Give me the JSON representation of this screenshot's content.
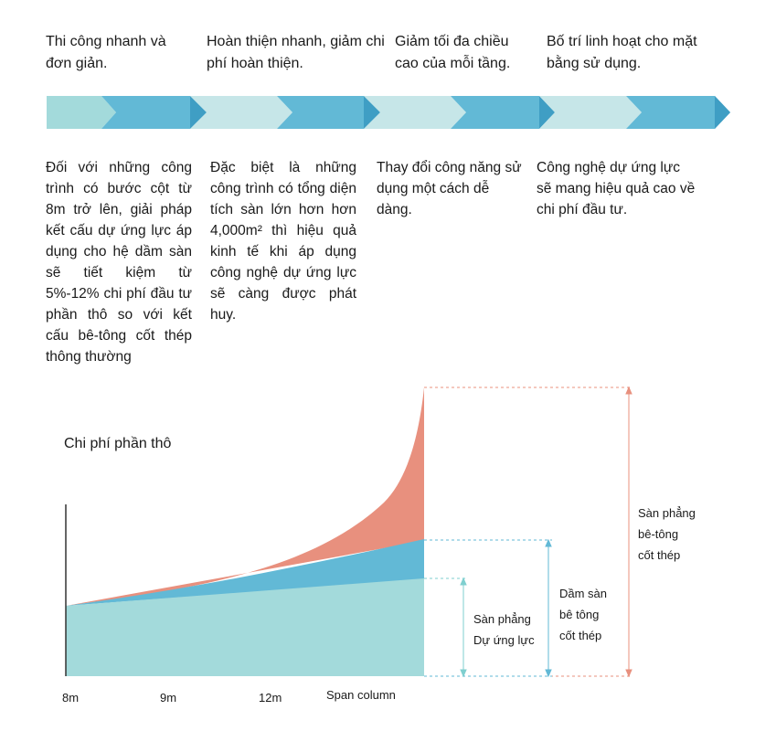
{
  "benefits": [
    "Thi công nhanh và đơn giản.",
    "Hoàn thiện nhanh, giảm chi phí hoàn thiện.",
    "Giảm tối đa chiều cao của mỗi tầng.",
    "Bố trí linh hoạt cho mặt bằng sử dụng."
  ],
  "descriptions": [
    "Đối với những công trình có bước cột từ 8m trở lên, giải pháp kết cấu dự ứng lực áp dụng cho hệ dầm sàn sẽ tiết kiệm từ 5%-12% chi phí đầu tư phần thô so với kết cấu bê-tông cốt thép thông thường",
    "Đặc biệt là những công trình có tổng diện tích sàn lớn hơn hơn 4,000m² thì hiệu quả kinh tế khi áp dụng công nghệ dự ứng lực sẽ càng được phát huy.",
    "Thay đổi công năng sử dụng một cách dễ dàng.",
    "Công nghệ dự ứng lực sẽ mang hiệu quả cao về chi phí đầu tư."
  ],
  "colors": {
    "teal_light": "#a3dadb",
    "teal_mid": "#c6e6e8",
    "blue": "#62b9d6",
    "blue_dark": "#3f9ec4",
    "red": "#e8907e"
  },
  "chart": {
    "title": "Chi phí phần thô",
    "x_labels": [
      "8m",
      "9m",
      "12m",
      "Span column"
    ],
    "series": [
      {
        "line1": "Sàn phẳng",
        "line2": "Dự ứng lực"
      },
      {
        "line1": "Dầm sàn",
        "line2": "bê tông",
        "line3": "cốt thép"
      },
      {
        "line1": "Sàn phẳng",
        "line2": "bê-tông",
        "line3": "cốt thép"
      }
    ]
  }
}
